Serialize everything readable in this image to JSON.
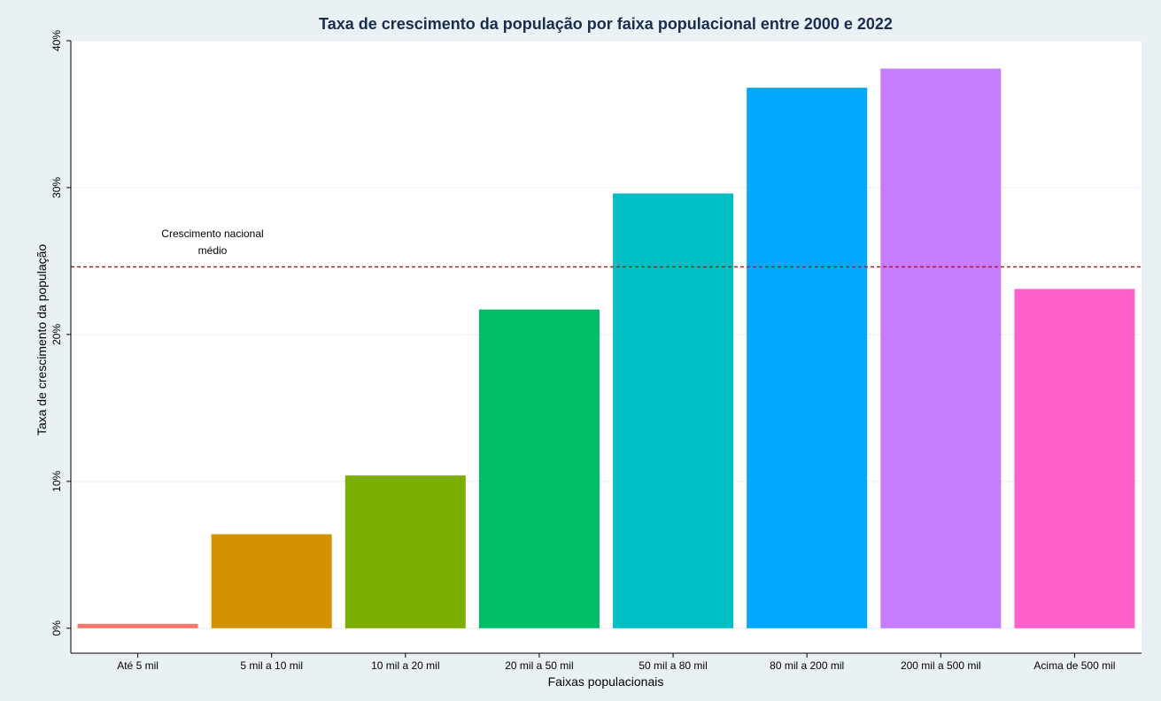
{
  "chart_data": {
    "type": "bar",
    "title": "Taxa de crescimento da população por faixa populacional entre 2000 e 2022",
    "xlabel": "Faixas populacionais",
    "ylabel": "Taxa de crescimento da população",
    "categories": [
      "Até 5 mil",
      "5 mil a 10 mil",
      "10 mil a 20 mil",
      "20 mil a 50 mil",
      "50 mil a 80 mil",
      "80 mil a 200 mil",
      "200 mil a 500 mil",
      "Acima de 500 mil"
    ],
    "values": [
      0.3,
      6.4,
      10.4,
      21.7,
      29.6,
      36.8,
      38.1,
      23.1
    ],
    "colors": [
      "#f8766d",
      "#d39200",
      "#7cae00",
      "#00be67",
      "#00bfc4",
      "#00a9ff",
      "#c77cff",
      "#ff61cc"
    ],
    "ylim": [
      -1.7,
      40
    ],
    "yticks": [
      0,
      10,
      20,
      30,
      40
    ],
    "ytick_labels": [
      "0%",
      "10%",
      "20%",
      "30%",
      "40%"
    ],
    "grid": true,
    "reference_line": {
      "value": 24.6,
      "label_line1": "Crescimento nacional",
      "label_line2": "médio",
      "color": "#a8202a"
    }
  }
}
